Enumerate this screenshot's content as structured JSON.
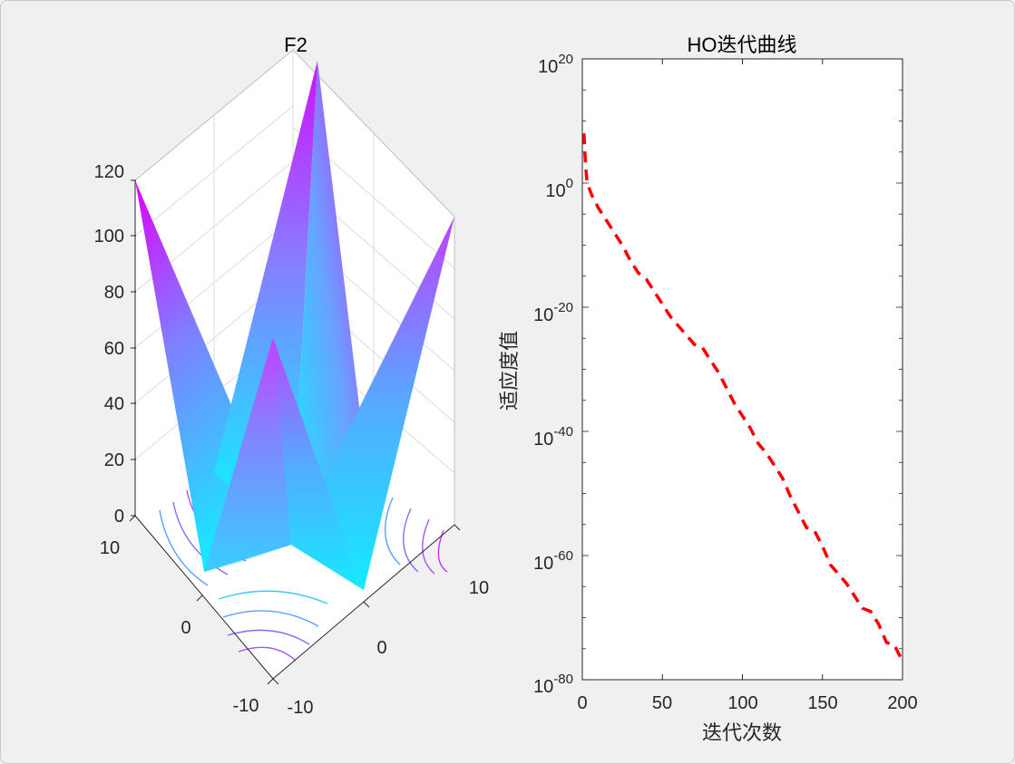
{
  "figure": {
    "background": "#f0f0f0"
  },
  "chart_data": [
    {
      "type": "surface",
      "title": "F2",
      "zlim": [
        0,
        120
      ],
      "z_ticks": [
        "0",
        "20",
        "40",
        "60",
        "80",
        "100",
        "120"
      ],
      "x_ticks": [
        "-10",
        "0",
        "10"
      ],
      "y_ticks": [
        "-10",
        "0",
        "10"
      ],
      "colormap": [
        "#00ffff",
        "#ff00ff"
      ],
      "grid": true,
      "contour_below": true
    },
    {
      "type": "line",
      "title": "HO迭代曲线",
      "xlabel": "迭代次数",
      "ylabel": "适应度值",
      "xlim": [
        0,
        200
      ],
      "x_ticks": [
        "0",
        "50",
        "100",
        "150",
        "200"
      ],
      "y_scale": "log",
      "ylim_exp": [
        -80,
        20
      ],
      "y_tick_exponents": [
        "20",
        "0",
        "-20",
        "-40",
        "-60",
        "-80"
      ],
      "series": [
        {
          "color": "#ff0000",
          "style": "dashed",
          "x": [
            1,
            2,
            3,
            6,
            10,
            15,
            20,
            25,
            30,
            35,
            40,
            45,
            50,
            55,
            60,
            65,
            70,
            75,
            80,
            85,
            90,
            95,
            100,
            105,
            110,
            115,
            120,
            125,
            130,
            135,
            140,
            145,
            150,
            155,
            160,
            165,
            170,
            175,
            180,
            185,
            190,
            195,
            200
          ],
          "y_exp": [
            8,
            3,
            0,
            -2,
            -4,
            -6,
            -8,
            -10,
            -12.5,
            -14.5,
            -15.5,
            -17.5,
            -19.5,
            -21.5,
            -23,
            -24.5,
            -26,
            -26.5,
            -28.5,
            -30.5,
            -33,
            -35.5,
            -37.5,
            -39.5,
            -42,
            -43.5,
            -45.5,
            -47.5,
            -50.5,
            -53,
            -55.5,
            -56,
            -58.5,
            -61.5,
            -63,
            -64.5,
            -66.5,
            -68.5,
            -69,
            -71,
            -74,
            -74.5,
            -77
          ]
        }
      ]
    }
  ]
}
